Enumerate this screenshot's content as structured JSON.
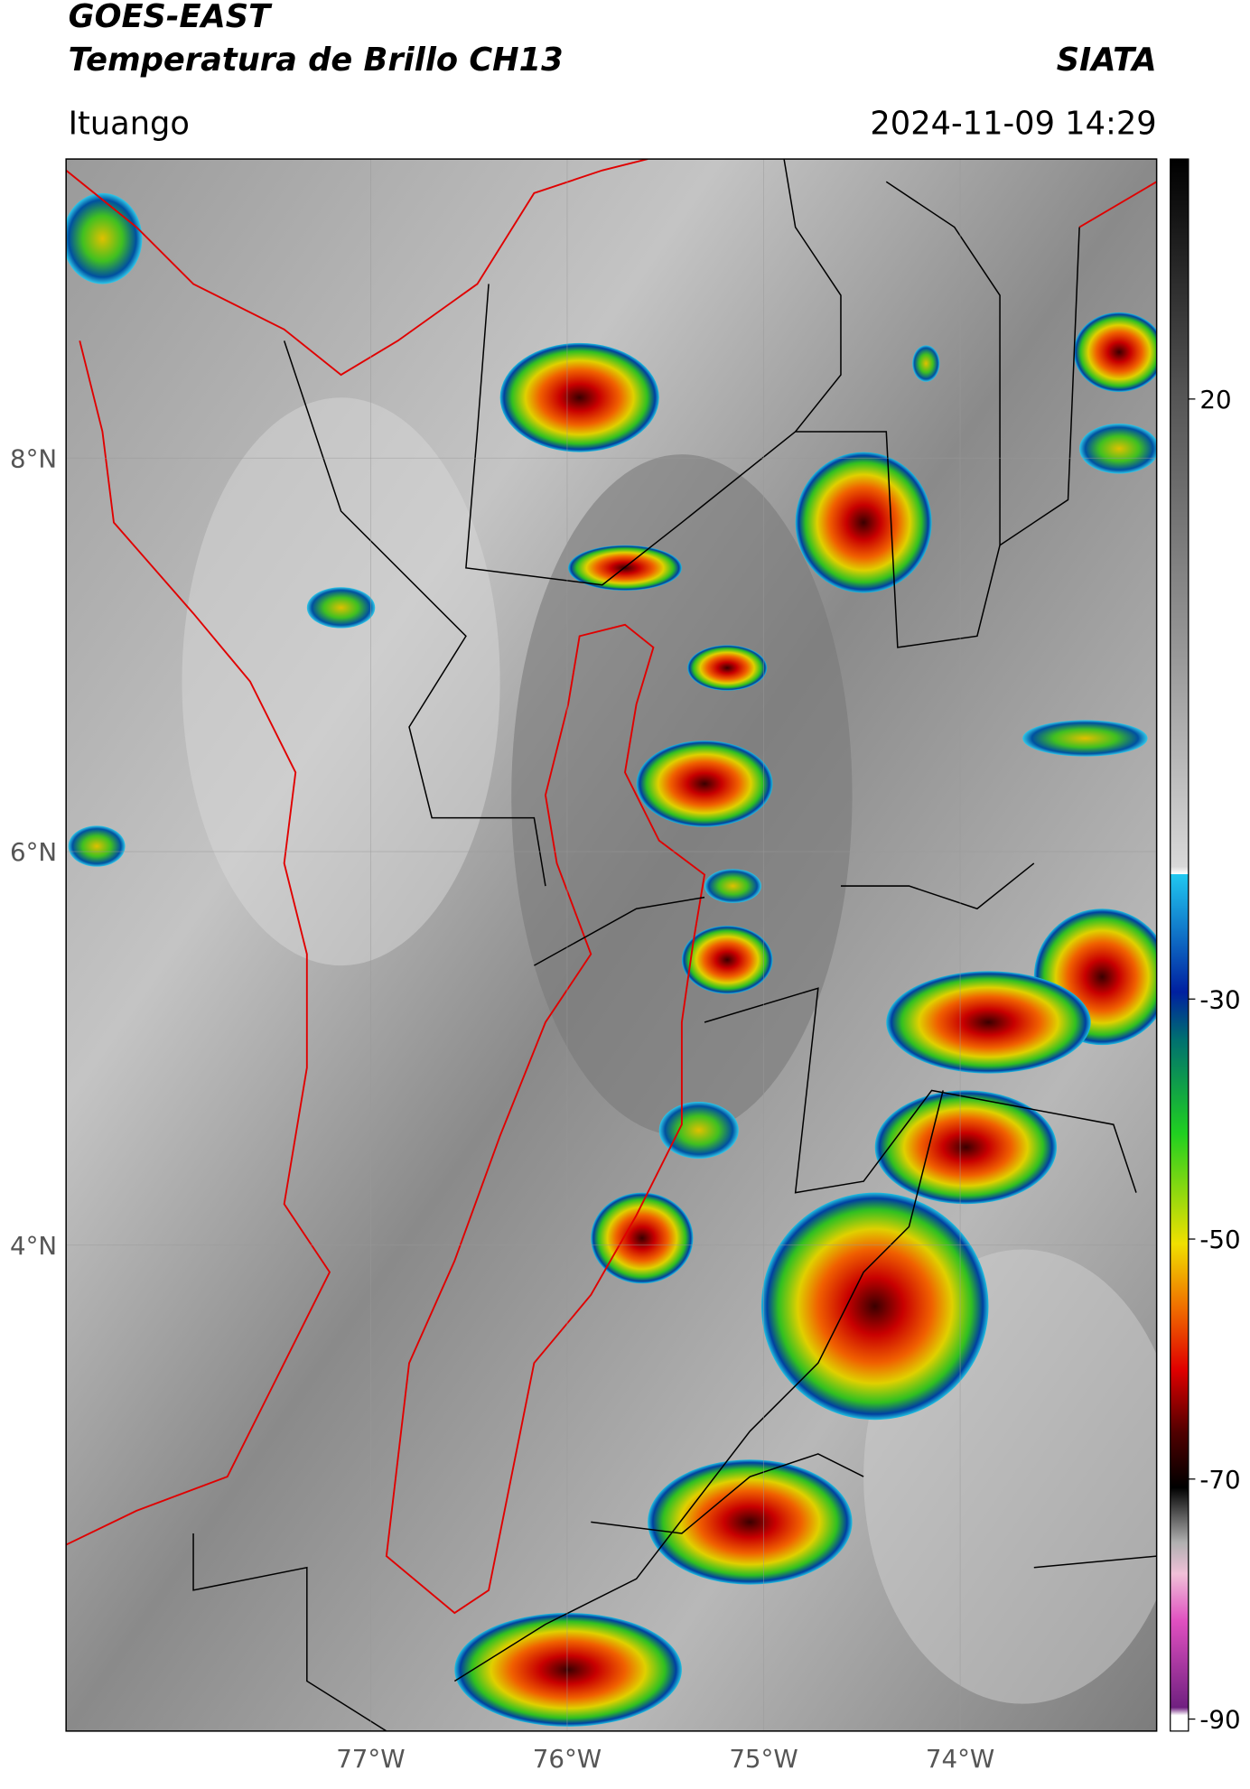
{
  "header": {
    "title": "GOES-EAST",
    "subtitle": "Temperatura de Brillo CH13",
    "brand": "SIATA",
    "location": "Ituango",
    "datetime": "2024-11-09 14:29"
  },
  "map": {
    "lonlim": [
      -78.55,
      -73.0
    ],
    "latlim": [
      1.53,
      9.52
    ],
    "lonticks": [
      {
        "value": -77,
        "label": "77°W"
      },
      {
        "value": -76,
        "label": "76°W"
      },
      {
        "value": -75,
        "label": "75°W"
      },
      {
        "value": -74,
        "label": "74°W"
      }
    ],
    "latticks": [
      {
        "value": 8,
        "label": "8°N"
      },
      {
        "value": 6,
        "label": "6°N"
      },
      {
        "value": 4,
        "label": "4°N"
      }
    ],
    "grid": true
  },
  "colorbar": {
    "lim": [
      -91,
      40
    ],
    "ticks": [
      20,
      -30,
      -50,
      -70,
      -90
    ]
  }
}
